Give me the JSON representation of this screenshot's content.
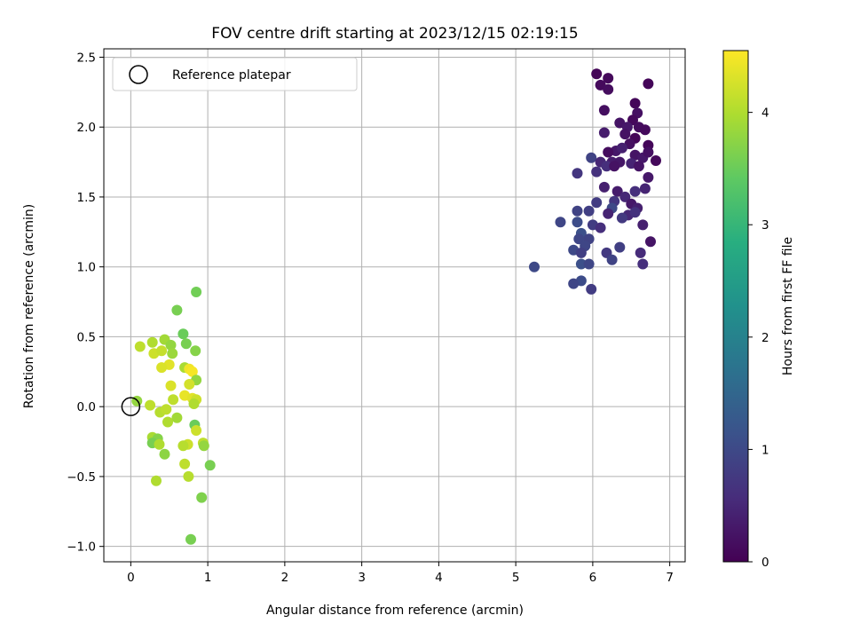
{
  "chart_data": {
    "type": "scatter",
    "title": "FOV centre drift starting at 2023/12/15 02:19:15",
    "xlabel": "Angular distance from reference (arcmin)",
    "ylabel": "Rotation from reference (arcmin)",
    "xlim": [
      -0.35,
      7.2
    ],
    "ylim": [
      -1.11,
      2.56
    ],
    "x_ticks": [
      0,
      1,
      2,
      3,
      4,
      5,
      6,
      7
    ],
    "x_tick_labels": [
      "0",
      "1",
      "2",
      "3",
      "4",
      "5",
      "6",
      "7"
    ],
    "y_ticks": [
      -1.0,
      -0.5,
      0.0,
      0.5,
      1.0,
      1.5,
      2.0,
      2.5
    ],
    "y_tick_labels": [
      "−1.0",
      "−0.5",
      "0.0",
      "0.5",
      "1.0",
      "1.5",
      "2.0",
      "2.5"
    ],
    "grid": true,
    "legend_position": "top-left",
    "legend": [
      {
        "label": "Reference platepar",
        "marker": "open-circle"
      }
    ],
    "reference_point": {
      "x": 0,
      "y": 0
    },
    "colorbar": {
      "label": "Hours from first FF file",
      "colormap": "viridis",
      "range": [
        0,
        4.55
      ],
      "ticks": [
        0,
        1,
        2,
        3,
        4
      ],
      "tick_labels": [
        "0",
        "1",
        "2",
        "3",
        "4"
      ]
    },
    "points": [
      [
        6.05,
        2.38,
        0.05
      ],
      [
        6.2,
        2.35,
        0.1
      ],
      [
        6.72,
        2.31,
        0.07
      ],
      [
        6.1,
        2.3,
        0.12
      ],
      [
        6.2,
        2.27,
        0.15
      ],
      [
        6.55,
        2.17,
        0.08
      ],
      [
        6.58,
        2.1,
        0.2
      ],
      [
        6.15,
        2.12,
        0.18
      ],
      [
        6.52,
        2.05,
        0.1
      ],
      [
        6.35,
        2.03,
        0.25
      ],
      [
        6.45,
        2.0,
        0.3
      ],
      [
        6.6,
        2.0,
        0.15
      ],
      [
        6.68,
        1.98,
        0.12
      ],
      [
        6.42,
        1.95,
        0.22
      ],
      [
        6.55,
        1.92,
        0.05
      ],
      [
        6.15,
        1.96,
        0.35
      ],
      [
        6.48,
        1.88,
        0.18
      ],
      [
        6.72,
        1.87,
        0.08
      ],
      [
        6.3,
        1.83,
        0.3
      ],
      [
        6.55,
        1.8,
        0.25
      ],
      [
        6.38,
        1.85,
        0.4
      ],
      [
        6.2,
        1.82,
        0.15
      ],
      [
        6.65,
        1.78,
        0.3
      ],
      [
        6.82,
        1.76,
        0.1
      ],
      [
        6.72,
        1.82,
        0.2
      ],
      [
        5.98,
        1.78,
        0.9
      ],
      [
        6.1,
        1.75,
        0.5
      ],
      [
        6.25,
        1.75,
        0.35
      ],
      [
        6.35,
        1.75,
        0.28
      ],
      [
        6.5,
        1.74,
        0.45
      ],
      [
        6.6,
        1.72,
        0.25
      ],
      [
        6.18,
        1.72,
        0.6
      ],
      [
        6.28,
        1.72,
        0.22
      ],
      [
        6.05,
        1.68,
        0.65
      ],
      [
        5.8,
        1.67,
        0.7
      ],
      [
        6.72,
        1.64,
        0.3
      ],
      [
        6.15,
        1.57,
        0.4
      ],
      [
        6.32,
        1.54,
        0.35
      ],
      [
        6.55,
        1.54,
        0.6
      ],
      [
        6.68,
        1.56,
        0.45
      ],
      [
        6.42,
        1.5,
        0.5
      ],
      [
        6.28,
        1.47,
        0.7
      ],
      [
        6.05,
        1.46,
        0.8
      ],
      [
        6.5,
        1.45,
        0.3
      ],
      [
        6.58,
        1.42,
        0.4
      ],
      [
        6.25,
        1.42,
        1.0
      ],
      [
        6.2,
        1.38,
        0.45
      ],
      [
        6.46,
        1.37,
        0.5
      ],
      [
        6.55,
        1.39,
        0.65
      ],
      [
        6.38,
        1.35,
        0.75
      ],
      [
        5.95,
        1.4,
        0.85
      ],
      [
        5.8,
        1.4,
        0.9
      ],
      [
        5.58,
        1.32,
        0.95
      ],
      [
        5.8,
        1.32,
        1.05
      ],
      [
        6.0,
        1.3,
        0.8
      ],
      [
        6.65,
        1.3,
        0.4
      ],
      [
        6.1,
        1.28,
        0.6
      ],
      [
        5.85,
        1.24,
        1.1
      ],
      [
        5.95,
        1.2,
        0.9
      ],
      [
        5.82,
        1.2,
        0.95
      ],
      [
        6.75,
        1.18,
        0.25
      ],
      [
        5.9,
        1.15,
        0.95
      ],
      [
        6.35,
        1.14,
        0.85
      ],
      [
        5.75,
        1.12,
        1.0
      ],
      [
        5.85,
        1.1,
        0.85
      ],
      [
        6.18,
        1.1,
        0.75
      ],
      [
        6.62,
        1.1,
        0.55
      ],
      [
        6.25,
        1.05,
        0.9
      ],
      [
        6.65,
        1.02,
        0.6
      ],
      [
        5.85,
        1.02,
        1.1
      ],
      [
        5.95,
        1.02,
        0.95
      ],
      [
        5.24,
        1.0,
        1.0
      ],
      [
        5.85,
        0.9,
        1.05
      ],
      [
        5.75,
        0.88,
        0.95
      ],
      [
        5.98,
        0.84,
        0.8
      ],
      [
        0.85,
        0.82,
        3.55
      ],
      [
        0.6,
        0.69,
        3.6
      ],
      [
        0.68,
        0.52,
        3.5
      ],
      [
        0.12,
        0.43,
        4.1
      ],
      [
        0.28,
        0.46,
        4.0
      ],
      [
        0.44,
        0.48,
        3.9
      ],
      [
        0.52,
        0.44,
        3.8
      ],
      [
        0.72,
        0.45,
        3.6
      ],
      [
        0.3,
        0.38,
        4.2
      ],
      [
        0.4,
        0.4,
        4.15
      ],
      [
        0.54,
        0.38,
        3.85
      ],
      [
        0.84,
        0.4,
        3.7
      ],
      [
        0.5,
        0.3,
        4.35
      ],
      [
        0.4,
        0.28,
        4.3
      ],
      [
        0.7,
        0.28,
        3.95
      ],
      [
        0.76,
        0.27,
        4.45
      ],
      [
        0.8,
        0.25,
        4.5
      ],
      [
        0.85,
        0.19,
        3.8
      ],
      [
        0.52,
        0.15,
        4.3
      ],
      [
        0.76,
        0.16,
        4.25
      ],
      [
        0.7,
        0.08,
        4.4
      ],
      [
        0.8,
        0.06,
        4.35
      ],
      [
        0.85,
        0.05,
        4.2
      ],
      [
        0.55,
        0.05,
        4.1
      ],
      [
        0.82,
        0.02,
        4.0
      ],
      [
        0.08,
        0.04,
        3.8
      ],
      [
        0.25,
        0.01,
        4.1
      ],
      [
        0.38,
        -0.04,
        4.05
      ],
      [
        0.46,
        -0.02,
        4.1
      ],
      [
        0.6,
        -0.08,
        3.9
      ],
      [
        0.48,
        -0.11,
        4.0
      ],
      [
        0.83,
        -0.13,
        3.5
      ],
      [
        0.85,
        -0.17,
        4.2
      ],
      [
        0.28,
        -0.22,
        3.95
      ],
      [
        0.35,
        -0.23,
        3.7
      ],
      [
        0.28,
        -0.26,
        3.6
      ],
      [
        0.37,
        -0.27,
        4.0
      ],
      [
        0.74,
        -0.27,
        4.2
      ],
      [
        0.68,
        -0.28,
        4.05
      ],
      [
        0.94,
        -0.26,
        4.1
      ],
      [
        0.95,
        -0.28,
        3.8
      ],
      [
        0.44,
        -0.34,
        3.75
      ],
      [
        0.7,
        -0.41,
        4.1
      ],
      [
        1.03,
        -0.42,
        3.6
      ],
      [
        0.75,
        -0.5,
        4.05
      ],
      [
        0.33,
        -0.53,
        4.0
      ],
      [
        0.92,
        -0.65,
        3.65
      ],
      [
        0.78,
        -0.95,
        3.6
      ]
    ]
  }
}
